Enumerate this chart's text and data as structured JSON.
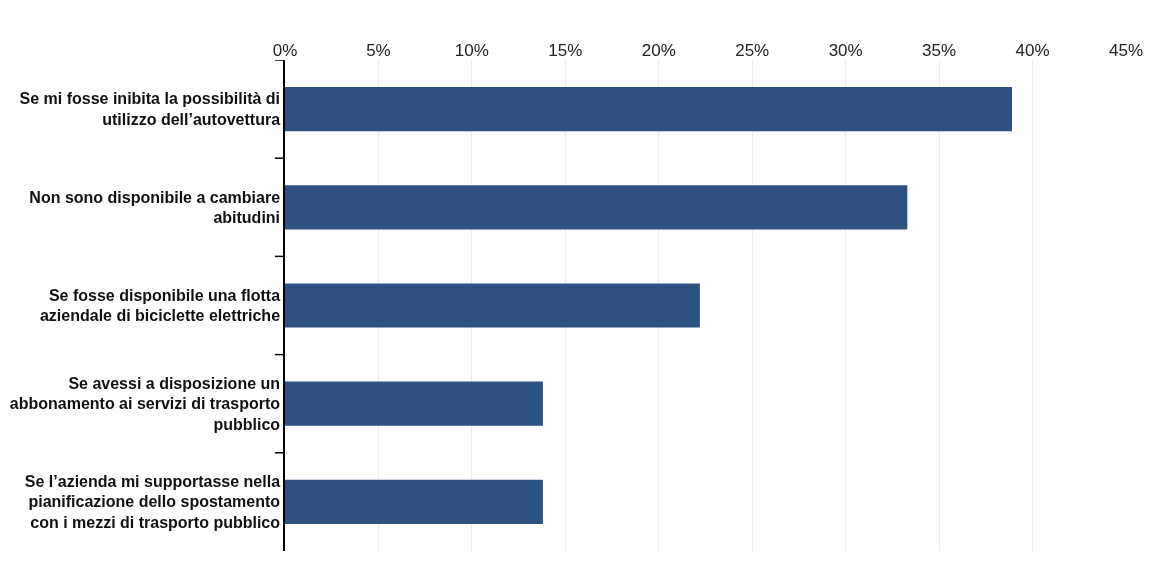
{
  "chart_data": {
    "type": "bar",
    "orientation": "horizontal",
    "categories": [
      "Se mi fosse inibita la possibilità di\nutilizzo dell’autovettura",
      "Non sono disponibile a cambiare\nabitudini",
      "Se fosse disponibile una flotta\naziendale di biciclette elettriche",
      "Se avessi a disposizione un\nabbonamento ai servizi di trasporto\npubblico",
      "Se l’azienda mi supportasse nella\npianificazione dello spostamento\ncon i mezzi di trasporto pubblico"
    ],
    "values": [
      38.9,
      33.3,
      22.2,
      13.8,
      13.8
    ],
    "color": "#2d5281",
    "xlim": [
      0,
      45
    ],
    "xticks": [
      {
        "value": 0,
        "label": "0%"
      },
      {
        "value": 5,
        "label": "5%"
      },
      {
        "value": 10,
        "label": "10%"
      },
      {
        "value": 15,
        "label": "15%"
      },
      {
        "value": 20,
        "label": "20%"
      },
      {
        "value": 25,
        "label": "25%"
      },
      {
        "value": 30,
        "label": "30%"
      },
      {
        "value": 35,
        "label": "35%"
      },
      {
        "value": 40,
        "label": "40%"
      },
      {
        "value": 45,
        "label": "45%"
      }
    ],
    "grid": "x",
    "legend": false
  }
}
